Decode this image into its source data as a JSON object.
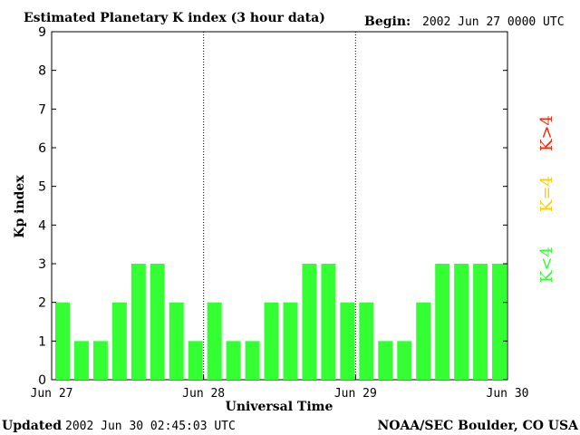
{
  "header": {
    "title": "Estimated Planetary K index (3 hour data)",
    "begin_label": "Begin:",
    "begin_value": "2002 Jun 27 0000 UTC"
  },
  "footer": {
    "updated_label": "Updated",
    "updated_value": "2002 Jun 30 02:45:03 UTC",
    "source": "NOAA/SEC Boulder, CO USA"
  },
  "legend": {
    "items": [
      {
        "label": "K<4",
        "color": "#33ff33"
      },
      {
        "label": "K=4",
        "color": "#ffcc00"
      },
      {
        "label": "K>4",
        "color": "#ff2200"
      }
    ]
  },
  "chart_data": {
    "type": "bar",
    "xlabel": "Universal Time",
    "ylabel": "Kp index",
    "ylim": [
      0,
      9
    ],
    "yticks": [
      "0",
      "1",
      "2",
      "3",
      "4",
      "5",
      "6",
      "7",
      "8",
      "9"
    ],
    "xticks": [
      "Jun 27",
      "Jun 28",
      "Jun 29",
      "Jun 30"
    ],
    "grid": "dotted vertical lines at day boundaries",
    "series": [
      {
        "values": [
          2,
          1,
          1,
          2,
          3,
          3,
          2,
          1,
          2,
          1,
          1,
          2,
          2,
          3,
          3,
          2,
          2,
          1,
          1,
          2,
          3,
          3,
          3,
          3
        ],
        "color": "#33ff33"
      }
    ]
  }
}
